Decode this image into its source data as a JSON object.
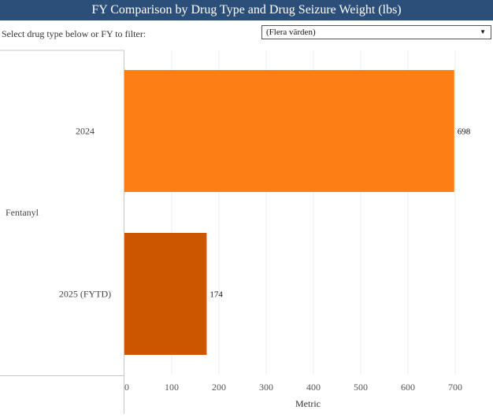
{
  "header": {
    "title": "FY Comparison by Drug Type and Drug Seizure Weight (lbs)"
  },
  "filter": {
    "label": "Select drug type below or FY to filter:",
    "selected_value": "(Flera värden)"
  },
  "colors": {
    "header_bg": "#2c4f7a",
    "bar_2024": "#fd7e14",
    "bar_2025": "#cc5500",
    "gridline": "#ececec",
    "axis": "#c8c8c8"
  },
  "chart_data": {
    "type": "bar",
    "orientation": "horizontal",
    "title": "FY Comparison by Drug Type and Drug Seizure Weight (lbs)",
    "group": "Fentanyl",
    "categories": [
      "2024",
      "2025 (FYTD)"
    ],
    "values": [
      698,
      174
    ],
    "data_labels": [
      "698",
      "174"
    ],
    "xlabel": "Metric",
    "xlim": [
      0,
      760
    ],
    "ticks": [
      0,
      100,
      200,
      300,
      400,
      500,
      600,
      700
    ],
    "grid": true
  }
}
